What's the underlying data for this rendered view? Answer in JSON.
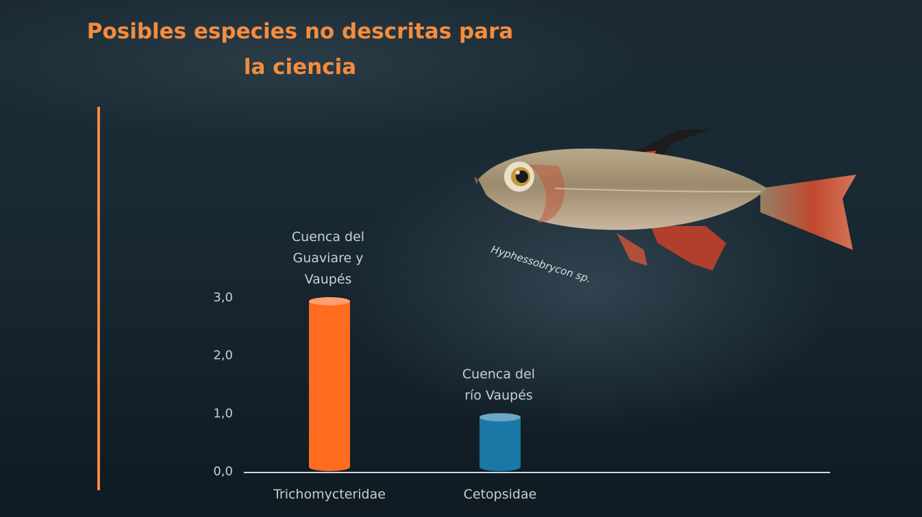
{
  "slide": {
    "title": "Posibles especies no descritas para la ciencia"
  },
  "chart_data": {
    "type": "bar",
    "categories": [
      "Trichomycteridae",
      "Cetopsidae"
    ],
    "values": [
      3.0,
      1.0
    ],
    "yticks": [
      "0,0",
      "1,0",
      "2,0",
      "3,0"
    ],
    "ylim": [
      0,
      3
    ],
    "bar_colors": [
      "#ff6b1f",
      "#1b78a6"
    ],
    "annotations": [
      [
        "Cuenca del",
        "Guaviare y",
        "Vaupés"
      ],
      [
        "Cuenca del",
        "río Vaupés"
      ]
    ],
    "grid": false
  },
  "image": {
    "caption": "Hyphessobrycon sp.",
    "icon": "fish-illustration"
  },
  "colors": {
    "accent": "#f48c3e",
    "axis_text": "#c9d0d4"
  }
}
